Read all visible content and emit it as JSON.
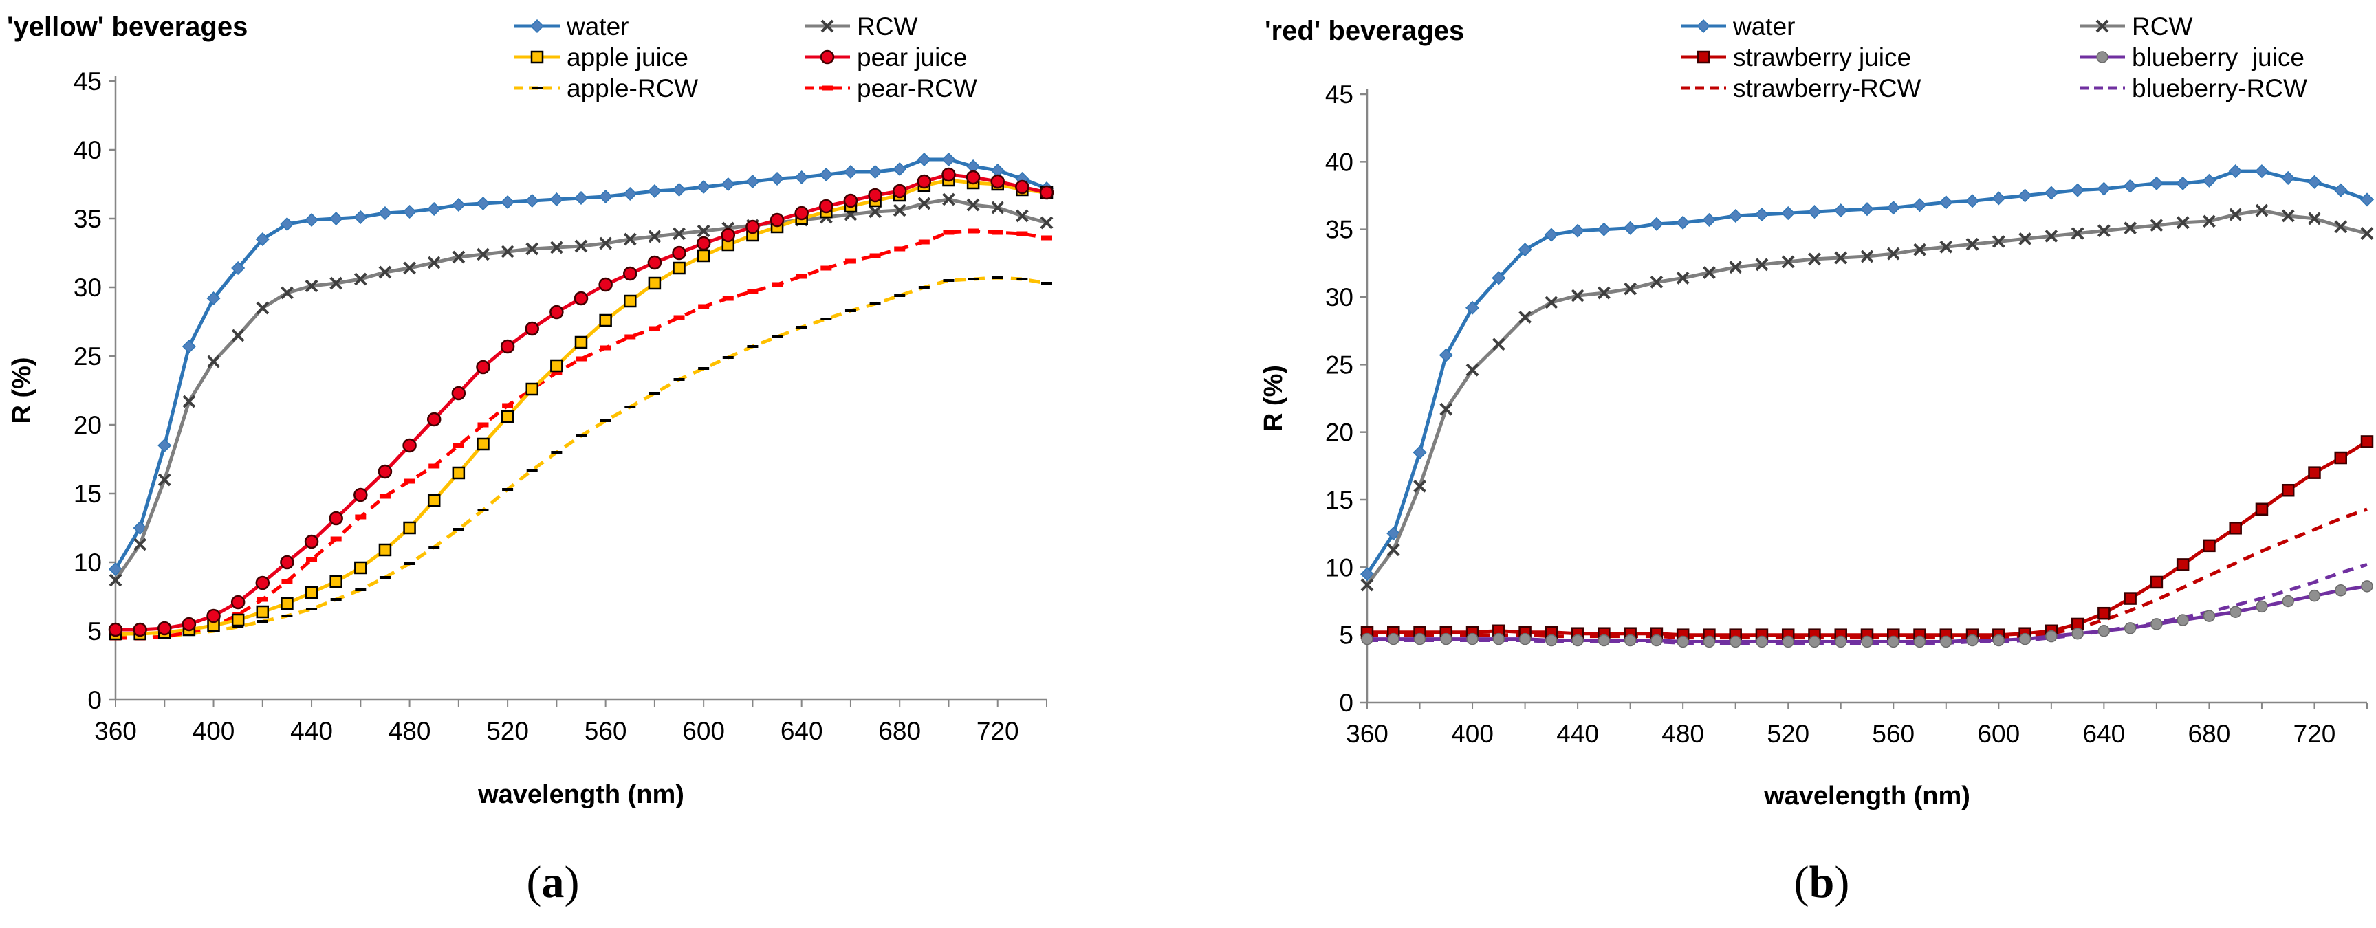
{
  "chart_data": [
    {
      "id": "a",
      "type": "line",
      "title": "'yellow' beverages",
      "xlabel": "wavelength (nm)",
      "ylabel": "R (%)",
      "caption": "(a)",
      "caption_letter": "a",
      "xlim": [
        360,
        740
      ],
      "ylim": [
        0,
        45
      ],
      "xticks": [
        360,
        400,
        440,
        480,
        520,
        560,
        600,
        640,
        680,
        720
      ],
      "yticks": [
        0,
        5,
        10,
        15,
        20,
        25,
        30,
        35,
        40,
        45
      ],
      "grid": false,
      "x": [
        360,
        370,
        380,
        390,
        400,
        410,
        420,
        430,
        440,
        450,
        460,
        470,
        480,
        490,
        500,
        510,
        520,
        530,
        540,
        550,
        560,
        570,
        580,
        590,
        600,
        610,
        620,
        630,
        640,
        650,
        660,
        670,
        680,
        690,
        700,
        710,
        720,
        730,
        740
      ],
      "series": [
        {
          "name": "water",
          "color": "#2E75B6",
          "marker": "diamond",
          "dash": "solid",
          "values": [
            9.5,
            12.5,
            18.5,
            25.7,
            29.2,
            31.4,
            33.5,
            34.6,
            34.9,
            35.0,
            35.1,
            35.4,
            35.5,
            35.7,
            36.0,
            36.1,
            36.2,
            36.3,
            36.4,
            36.5,
            36.6,
            36.8,
            37.0,
            37.1,
            37.3,
            37.5,
            37.7,
            37.9,
            38.0,
            38.2,
            38.4,
            38.4,
            38.6,
            39.3,
            39.3,
            38.8,
            38.5,
            37.9,
            37.2
          ]
        },
        {
          "name": "RCW",
          "color": "#7F7F7F",
          "marker": "x",
          "dash": "solid",
          "values": [
            8.7,
            11.3,
            16.0,
            21.7,
            24.6,
            26.5,
            28.5,
            29.6,
            30.1,
            30.3,
            30.6,
            31.1,
            31.4,
            31.8,
            32.2,
            32.4,
            32.6,
            32.8,
            32.9,
            33.0,
            33.2,
            33.5,
            33.7,
            33.9,
            34.1,
            34.3,
            34.5,
            34.7,
            34.9,
            35.1,
            35.3,
            35.5,
            35.6,
            36.1,
            36.4,
            36.0,
            35.8,
            35.2,
            34.7
          ]
        },
        {
          "name": "apple juice",
          "color": "#FFC000",
          "marker": "square-open",
          "dash": "solid",
          "values": [
            4.8,
            4.8,
            4.9,
            5.1,
            5.4,
            5.8,
            6.4,
            7.0,
            7.8,
            8.6,
            9.6,
            10.9,
            12.5,
            14.5,
            16.5,
            18.6,
            20.6,
            22.6,
            24.3,
            26.0,
            27.6,
            29.0,
            30.3,
            31.4,
            32.3,
            33.1,
            33.8,
            34.4,
            35.0,
            35.5,
            35.9,
            36.3,
            36.7,
            37.4,
            37.8,
            37.6,
            37.5,
            37.1,
            36.9
          ]
        },
        {
          "name": "pear juice",
          "color": "#E8001C",
          "marker": "circle",
          "dash": "solid",
          "values": [
            5.1,
            5.1,
            5.2,
            5.5,
            6.1,
            7.1,
            8.5,
            10.0,
            11.5,
            13.2,
            14.9,
            16.6,
            18.5,
            20.4,
            22.3,
            24.2,
            25.7,
            27.0,
            28.2,
            29.2,
            30.2,
            31.0,
            31.8,
            32.5,
            33.2,
            33.8,
            34.4,
            34.9,
            35.4,
            35.9,
            36.3,
            36.7,
            37.0,
            37.7,
            38.2,
            38.0,
            37.7,
            37.3,
            36.9
          ]
        },
        {
          "name": "apple-RCW",
          "color": "#FFC000",
          "marker": "dash-black",
          "dash": "dashed",
          "values": [
            4.6,
            4.6,
            4.6,
            4.8,
            5.0,
            5.3,
            5.7,
            6.1,
            6.6,
            7.3,
            8.0,
            8.9,
            9.9,
            11.1,
            12.4,
            13.8,
            15.3,
            16.7,
            18.0,
            19.2,
            20.3,
            21.3,
            22.3,
            23.3,
            24.1,
            24.9,
            25.7,
            26.4,
            27.1,
            27.7,
            28.3,
            28.8,
            29.4,
            30.0,
            30.5,
            30.6,
            30.7,
            30.6,
            30.3
          ]
        },
        {
          "name": "pear-RCW",
          "color": "#FF0000",
          "marker": "dash-red",
          "dash": "dashed",
          "values": [
            4.5,
            4.5,
            4.6,
            4.9,
            5.3,
            6.2,
            7.3,
            8.6,
            10.2,
            11.7,
            13.3,
            14.8,
            15.9,
            17.0,
            18.5,
            20.0,
            21.4,
            22.6,
            23.8,
            24.8,
            25.6,
            26.4,
            27.0,
            27.8,
            28.6,
            29.2,
            29.7,
            30.2,
            30.8,
            31.4,
            31.9,
            32.3,
            32.8,
            33.3,
            34.0,
            34.1,
            34.0,
            33.9,
            33.6
          ]
        }
      ],
      "legend": [
        {
          "name": "water",
          "marker": "diamond",
          "color": "#2E75B6",
          "dash": "solid"
        },
        {
          "name": "RCW",
          "marker": "x",
          "color": "#7F7F7F",
          "dash": "solid"
        },
        {
          "name": "apple juice",
          "marker": "square-open",
          "color": "#FFC000",
          "dash": "solid"
        },
        {
          "name": "pear juice",
          "marker": "circle",
          "color": "#E8001C",
          "dash": "solid"
        },
        {
          "name": "apple-RCW",
          "marker": "dash-black",
          "color": "#FFC000",
          "dash": "dashed"
        },
        {
          "name": "pear-RCW",
          "marker": "dash-red",
          "color": "#FF0000",
          "dash": "dashed"
        }
      ],
      "legend_position": "top"
    },
    {
      "id": "b",
      "type": "line",
      "title": "'red' beverages",
      "xlabel": "wavelength (nm)",
      "ylabel": "R (%)",
      "caption": "(b)",
      "caption_letter": "b",
      "xlim": [
        360,
        740
      ],
      "ylim": [
        0,
        45
      ],
      "xticks": [
        360,
        400,
        440,
        480,
        520,
        560,
        600,
        640,
        680,
        720
      ],
      "yticks": [
        0,
        5,
        10,
        15,
        20,
        25,
        30,
        35,
        40,
        45
      ],
      "grid": false,
      "x": [
        360,
        370,
        380,
        390,
        400,
        410,
        420,
        430,
        440,
        450,
        460,
        470,
        480,
        490,
        500,
        510,
        520,
        530,
        540,
        550,
        560,
        570,
        580,
        590,
        600,
        610,
        620,
        630,
        640,
        650,
        660,
        670,
        680,
        690,
        700,
        710,
        720,
        730,
        740
      ],
      "series": [
        {
          "name": "water",
          "color": "#2E75B6",
          "marker": "diamond",
          "dash": "solid",
          "values": [
            9.5,
            12.5,
            18.5,
            25.7,
            29.2,
            31.4,
            33.5,
            34.6,
            34.9,
            35.0,
            35.1,
            35.4,
            35.5,
            35.7,
            36.0,
            36.1,
            36.2,
            36.3,
            36.4,
            36.5,
            36.6,
            36.8,
            37.0,
            37.1,
            37.3,
            37.5,
            37.7,
            37.9,
            38.0,
            38.2,
            38.4,
            38.4,
            38.6,
            39.3,
            39.3,
            38.8,
            38.5,
            37.9,
            37.2
          ]
        },
        {
          "name": "RCW",
          "color": "#7F7F7F",
          "marker": "x",
          "dash": "solid",
          "values": [
            8.7,
            11.3,
            16.0,
            21.7,
            24.6,
            26.5,
            28.5,
            29.6,
            30.1,
            30.3,
            30.6,
            31.1,
            31.4,
            31.8,
            32.2,
            32.4,
            32.6,
            32.8,
            32.9,
            33.0,
            33.2,
            33.5,
            33.7,
            33.9,
            34.1,
            34.3,
            34.5,
            34.7,
            34.9,
            35.1,
            35.3,
            35.5,
            35.6,
            36.1,
            36.4,
            36.0,
            35.8,
            35.2,
            34.7
          ]
        },
        {
          "name": "strawberry juice",
          "color": "#C00000",
          "marker": "square",
          "dash": "solid",
          "values": [
            5.2,
            5.2,
            5.2,
            5.2,
            5.2,
            5.3,
            5.2,
            5.2,
            5.1,
            5.1,
            5.1,
            5.1,
            5.0,
            5.0,
            5.0,
            5.0,
            5.0,
            5.0,
            5.0,
            5.0,
            5.0,
            5.0,
            5.0,
            5.0,
            5.0,
            5.1,
            5.3,
            5.8,
            6.6,
            7.7,
            8.9,
            10.2,
            11.6,
            12.9,
            14.3,
            15.7,
            17.0,
            18.1,
            19.3
          ]
        },
        {
          "name": "blueberry  juice",
          "color": "#7030A0",
          "marker": "circle-grey",
          "dash": "solid",
          "values": [
            4.7,
            4.7,
            4.7,
            4.7,
            4.7,
            4.7,
            4.7,
            4.6,
            4.6,
            4.6,
            4.6,
            4.6,
            4.5,
            4.5,
            4.5,
            4.5,
            4.5,
            4.5,
            4.5,
            4.5,
            4.5,
            4.5,
            4.5,
            4.6,
            4.6,
            4.7,
            4.9,
            5.1,
            5.3,
            5.5,
            5.8,
            6.1,
            6.4,
            6.7,
            7.1,
            7.5,
            7.9,
            8.3,
            8.6
          ]
        },
        {
          "name": "strawberry-RCW",
          "color": "#C00000",
          "marker": "none",
          "dash": "dashed",
          "values": [
            5.0,
            5.0,
            5.0,
            5.0,
            5.0,
            5.0,
            5.0,
            4.9,
            4.9,
            4.9,
            4.9,
            4.9,
            4.8,
            4.8,
            4.8,
            4.8,
            4.8,
            4.8,
            4.8,
            4.8,
            4.8,
            4.8,
            4.8,
            4.8,
            4.8,
            4.9,
            5.1,
            5.5,
            6.1,
            6.8,
            7.6,
            8.5,
            9.4,
            10.3,
            11.2,
            12.0,
            12.8,
            13.6,
            14.3
          ]
        },
        {
          "name": "blueberry-RCW",
          "color": "#7030A0",
          "marker": "none",
          "dash": "dashed",
          "values": [
            4.6,
            4.6,
            4.6,
            4.6,
            4.6,
            4.6,
            4.6,
            4.5,
            4.5,
            4.5,
            4.5,
            4.5,
            4.4,
            4.4,
            4.4,
            4.4,
            4.4,
            4.4,
            4.4,
            4.4,
            4.4,
            4.4,
            4.4,
            4.5,
            4.5,
            4.6,
            4.8,
            5.0,
            5.3,
            5.6,
            5.9,
            6.3,
            6.7,
            7.2,
            7.7,
            8.3,
            8.9,
            9.6,
            10.2
          ]
        }
      ],
      "legend": [
        {
          "name": "water",
          "marker": "diamond",
          "color": "#2E75B6",
          "dash": "solid"
        },
        {
          "name": "RCW",
          "marker": "x",
          "color": "#7F7F7F",
          "dash": "solid"
        },
        {
          "name": "strawberry juice",
          "marker": "square",
          "color": "#C00000",
          "dash": "solid"
        },
        {
          "name": "blueberry  juice",
          "marker": "circle-grey",
          "color": "#7030A0",
          "dash": "solid"
        },
        {
          "name": "strawberry-RCW",
          "marker": "none",
          "color": "#C00000",
          "dash": "dashed"
        },
        {
          "name": "blueberry-RCW",
          "marker": "none",
          "color": "#7030A0",
          "dash": "dashed"
        }
      ],
      "legend_position": "top"
    }
  ]
}
